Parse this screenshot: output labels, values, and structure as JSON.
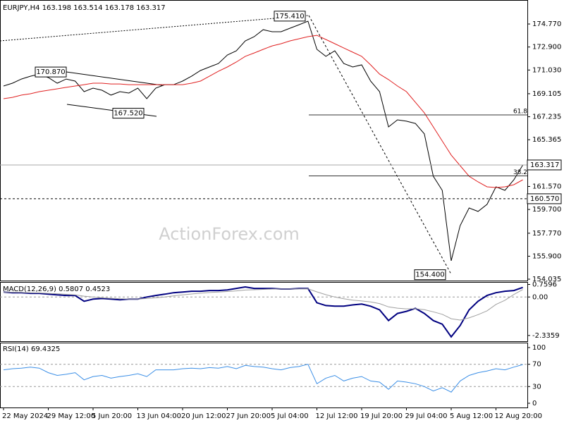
{
  "chart_data": [
    {
      "type": "line",
      "title": "EURJPY,H4  163.198 163.514 163.178 163.317",
      "ylim": [
        153.92,
        176.72
      ],
      "yticks": [
        {
          "value": 174.77,
          "label": "174.770"
        },
        {
          "value": 172.9,
          "label": "172.900"
        },
        {
          "value": 171.03,
          "label": "171.030"
        },
        {
          "value": 169.105,
          "label": "169.105"
        },
        {
          "value": 167.235,
          "label": "167.235"
        },
        {
          "value": 165.365,
          "label": "165.365"
        },
        {
          "value": 161.57,
          "label": "161.570"
        },
        {
          "value": 159.7,
          "label": "159.700"
        },
        {
          "value": 157.77,
          "label": "157.770"
        },
        {
          "value": 155.9,
          "label": "155.900"
        },
        {
          "value": 154.035,
          "label": "154.035"
        }
      ],
      "series": [
        {
          "color": "#000000",
          "width": 1,
          "values": [
            169.73,
            169.96,
            170.3,
            170.53,
            170.7,
            170.42,
            169.96,
            170.3,
            170.13,
            169.27,
            169.56,
            169.39,
            168.99,
            169.27,
            169.16,
            169.56,
            168.7,
            169.56,
            169.84,
            169.84,
            170.13,
            170.53,
            170.99,
            171.28,
            171.56,
            172.25,
            172.59,
            173.4,
            173.74,
            174.31,
            174.14,
            174.14,
            174.43,
            174.71,
            175.0,
            172.71,
            172.14,
            172.59,
            171.56,
            171.28,
            171.45,
            170.13,
            169.27,
            166.41,
            166.98,
            166.87,
            166.69,
            165.84,
            162.4,
            161.25,
            155.53,
            158.39,
            159.82,
            159.54,
            160.11,
            161.54,
            161.25,
            162.11,
            163.317
          ]
        },
        {
          "color": "#e02020",
          "width": 1,
          "values": [
            168.7,
            168.81,
            168.99,
            169.1,
            169.27,
            169.39,
            169.5,
            169.62,
            169.73,
            169.84,
            169.96,
            169.96,
            169.9,
            169.9,
            169.84,
            169.84,
            169.84,
            169.84,
            169.84,
            169.84,
            169.84,
            169.96,
            170.13,
            170.53,
            170.93,
            171.28,
            171.68,
            172.14,
            172.42,
            172.71,
            172.99,
            173.17,
            173.4,
            173.57,
            173.74,
            173.85,
            173.51,
            173.17,
            172.82,
            172.48,
            172.14,
            171.45,
            170.7,
            170.25,
            169.73,
            169.27,
            168.41,
            167.55,
            166.41,
            165.26,
            164.12,
            163.26,
            162.4,
            161.94,
            161.54,
            161.48,
            161.54,
            161.71,
            162.11
          ]
        }
      ],
      "annotations": [
        {
          "value": 170.87,
          "label": "170.870"
        },
        {
          "value": 167.52,
          "label": "167.520"
        },
        {
          "value": 175.41,
          "label": "175.410"
        },
        {
          "value": 154.4,
          "label": "154.400"
        }
      ],
      "fib_levels": [
        {
          "label": "61.8",
          "price": 167.38
        },
        {
          "label": "38.2",
          "price": 162.43
        }
      ],
      "last_price": 163.317,
      "support_level": {
        "value": 160.57,
        "label": "160.570"
      },
      "watermark": "ActionForex.com"
    },
    {
      "type": "line",
      "title": "MACD(12,26,9) 0.5807 0.4523",
      "ylim": [
        -2.684,
        0.909
      ],
      "yticks": [
        0.7596,
        {
          "value": 0,
          "label": "0.00"
        },
        -2.3359
      ],
      "grid_levels": [
        0
      ],
      "series": [
        {
          "color": "#000080",
          "width": 2,
          "values": [
            0.3,
            0.26,
            0.26,
            0.22,
            0.22,
            0.17,
            0.13,
            0.09,
            0.09,
            -0.26,
            -0.13,
            -0.09,
            -0.13,
            -0.17,
            -0.13,
            -0.13,
            0,
            0.09,
            0.17,
            0.26,
            0.3,
            0.35,
            0.35,
            0.39,
            0.39,
            0.43,
            0.52,
            0.61,
            0.52,
            0.52,
            0.52,
            0.48,
            0.48,
            0.52,
            0.52,
            -0.35,
            -0.52,
            -0.56,
            -0.56,
            -0.48,
            -0.43,
            -0.56,
            -0.78,
            -1.43,
            -1.0,
            -0.87,
            -0.69,
            -1.0,
            -1.43,
            -1.65,
            -2.42,
            -1.73,
            -0.78,
            -0.26,
            0.09,
            0.26,
            0.35,
            0.39,
            0.5807
          ]
        },
        {
          "color": "#a0a0a0",
          "width": 1,
          "values": [
            0.3,
            0.29,
            0.28,
            0.26,
            0.25,
            0.22,
            0.19,
            0.16,
            0.13,
            0.05,
            0.0,
            -0.05,
            -0.08,
            -0.11,
            -0.12,
            -0.12,
            -0.09,
            -0.05,
            0.0,
            0.07,
            0.13,
            0.18,
            0.23,
            0.27,
            0.3,
            0.33,
            0.37,
            0.42,
            0.44,
            0.46,
            0.48,
            0.48,
            0.48,
            0.49,
            0.5,
            0.31,
            0.14,
            0.0,
            -0.11,
            -0.19,
            -0.24,
            -0.3,
            -0.4,
            -0.6,
            -0.68,
            -0.72,
            -0.71,
            -0.77,
            -0.9,
            -1.05,
            -1.32,
            -1.4,
            -1.27,
            -1.07,
            -0.84,
            -0.45,
            -0.2,
            0.15,
            0.4523
          ]
        }
      ]
    },
    {
      "type": "line",
      "title": "RSI(14) 69.4325",
      "ylim": [
        -7.6,
        107.6
      ],
      "yticks": [
        100,
        70,
        30,
        0
      ],
      "grid_levels": [
        70,
        30
      ],
      "categories": [
        "22 May 2024",
        null,
        null,
        null,
        null,
        "29 May 12:00",
        null,
        null,
        null,
        null,
        "5 Jun 20:00",
        null,
        null,
        null,
        null,
        "13 Jun 04:00",
        null,
        null,
        null,
        null,
        "20 Jun 12:00",
        null,
        null,
        null,
        null,
        "27 Jun 20:00",
        null,
        null,
        null,
        null,
        "5 Jul 04:00",
        null,
        null,
        null,
        null,
        "12 Jul 12:00",
        null,
        null,
        null,
        null,
        "19 Jul 20:00",
        null,
        null,
        null,
        null,
        "29 Jul 04:00",
        null,
        null,
        null,
        null,
        "5 Aug 12:00",
        null,
        null,
        null,
        null,
        "12 Aug 20:00",
        null,
        null,
        null
      ],
      "series": [
        {
          "color": "#3a8ee6",
          "width": 1,
          "values": [
            60,
            62,
            63,
            65,
            63,
            55,
            50,
            52,
            55,
            42,
            48,
            50,
            45,
            48,
            50,
            53,
            48,
            60,
            60,
            60,
            62,
            63,
            62,
            64,
            63,
            66,
            62,
            68,
            66,
            65,
            62,
            60,
            64,
            66,
            70,
            35,
            45,
            50,
            40,
            45,
            48,
            40,
            38,
            25,
            40,
            38,
            35,
            30,
            22,
            28,
            20,
            40,
            50,
            55,
            58,
            62,
            60,
            65,
            69.4325
          ]
        }
      ]
    }
  ]
}
